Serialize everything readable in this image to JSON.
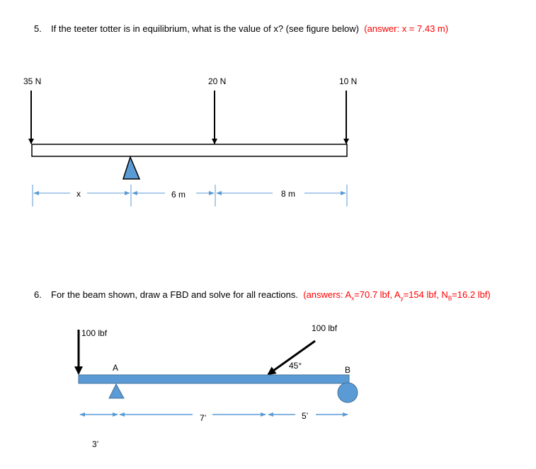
{
  "q5": {
    "number": "5.",
    "text": "If the teeter totter is in equilibrium, what is the value of x? (see figure below)",
    "answer": "(answer:  x = 7.43 m)",
    "figure": {
      "forces": [
        "35 N",
        "20 N",
        "10 N"
      ],
      "dimensions": [
        "x",
        "6 m",
        "8 m"
      ],
      "support_color": "#5b9bd5"
    }
  },
  "q6": {
    "number": "6.",
    "text": "For the beam shown, draw a FBD and solve for all reactions.",
    "answer_prefix": "(answers: A",
    "ax_sub": "x",
    "ax_val": "=70.7 lbf, A",
    "ay_sub": "y",
    "ay_val": "=154 lbf, N",
    "nb_sub": "B",
    "nb_val": "=16.2 lbf)",
    "figure": {
      "force_left": "100 lbf",
      "force_angled": "100 lbf",
      "angle": "45°",
      "point_a": "A",
      "point_b": "B",
      "dimensions": [
        "3’",
        "7’",
        "5’"
      ],
      "beam_color": "#5b9bd5"
    }
  }
}
